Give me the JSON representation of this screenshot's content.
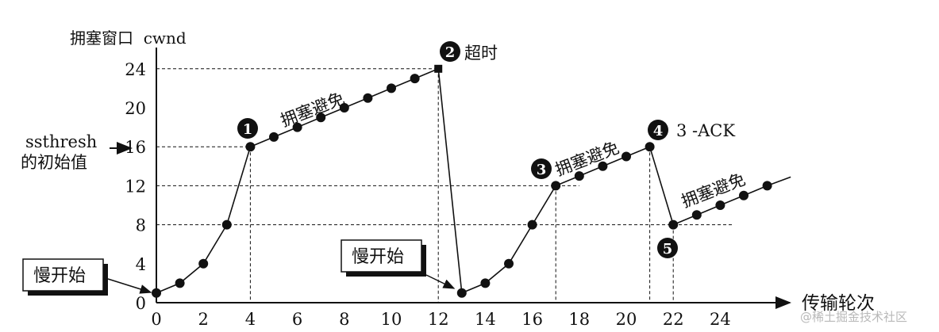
{
  "chart_data": {
    "type": "line",
    "title": "",
    "xlabel": "传输轮次",
    "ylabel": "拥塞窗口  cwnd",
    "xlim": [
      0,
      26
    ],
    "ylim": [
      0,
      26
    ],
    "xticks": [
      "0",
      "2",
      "4",
      "6",
      "8",
      "10",
      "12",
      "14",
      "16",
      "18",
      "20",
      "22",
      "24"
    ],
    "yticks": [
      "0",
      "4",
      "8",
      "12",
      "16",
      "20",
      "24"
    ],
    "segments": [
      [
        [
          0,
          1
        ],
        [
          1,
          2
        ],
        [
          2,
          4
        ],
        [
          3,
          8
        ],
        [
          4,
          16
        ],
        [
          5,
          17
        ],
        [
          6,
          18
        ],
        [
          7,
          19
        ],
        [
          8,
          20
        ],
        [
          9,
          21
        ],
        [
          10,
          22
        ],
        [
          11,
          23
        ],
        [
          12,
          24
        ]
      ],
      [
        [
          13,
          1
        ],
        [
          14,
          2
        ],
        [
          15,
          4
        ],
        [
          16,
          8
        ],
        [
          17,
          12
        ],
        [
          18,
          13
        ],
        [
          19,
          14
        ],
        [
          20,
          15
        ],
        [
          21,
          16
        ]
      ],
      [
        [
          22,
          8
        ],
        [
          23,
          9
        ],
        [
          24,
          10
        ],
        [
          25,
          11
        ],
        [
          26,
          12
        ]
      ]
    ],
    "drops": [
      [
        [
          12,
          24
        ],
        [
          13,
          1
        ]
      ],
      [
        [
          21,
          16
        ],
        [
          22,
          8
        ]
      ]
    ],
    "ssthresh_label": "ssthresh\n的初始值",
    "annotations": [
      {
        "marker": "1",
        "text": "拥塞避免"
      },
      {
        "marker": "2",
        "text": "超时"
      },
      {
        "marker": "3",
        "text": "拥塞避免"
      },
      {
        "marker": "4",
        "text": "3 -ACK"
      },
      {
        "marker": "5",
        "text": ""
      },
      {
        "marker": "",
        "text": "拥塞避免"
      }
    ],
    "slow_start_label": "慢开始",
    "watermark": "@稀土掘金技术社区",
    "grid": false,
    "legend": "none"
  }
}
